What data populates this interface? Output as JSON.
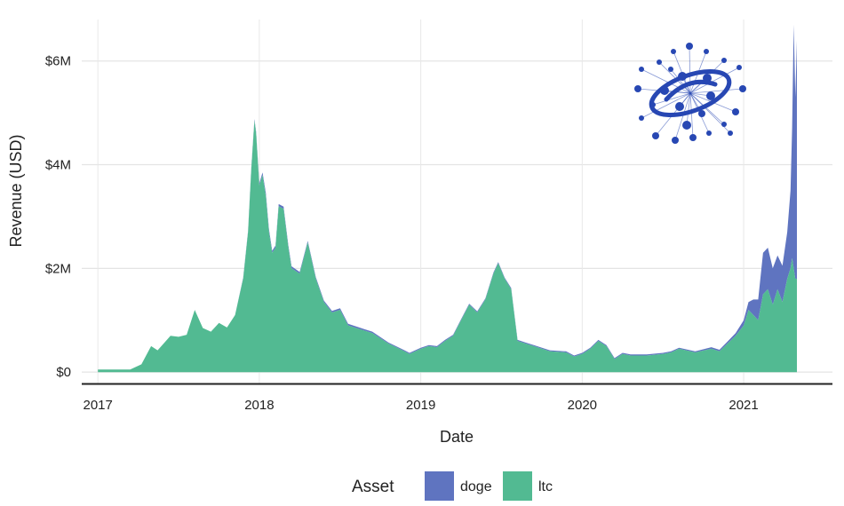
{
  "chart_data": {
    "type": "area",
    "stacked": true,
    "title": "",
    "xlabel": "Date",
    "ylabel": "Revenue (USD)",
    "xlim": [
      2016.9,
      2021.55
    ],
    "ylim": [
      -220000,
      6800000
    ],
    "x_ticks": [
      {
        "value": 2017,
        "label": "2017"
      },
      {
        "value": 2018,
        "label": "2018"
      },
      {
        "value": 2019,
        "label": "2019"
      },
      {
        "value": 2020,
        "label": "2020"
      },
      {
        "value": 2021,
        "label": "2021"
      }
    ],
    "y_ticks": [
      {
        "value": 0,
        "label": "$0"
      },
      {
        "value": 2000000,
        "label": "$2M"
      },
      {
        "value": 4000000,
        "label": "$4M"
      },
      {
        "value": 6000000,
        "label": "$6M"
      }
    ],
    "legend": {
      "title": "Asset",
      "position": "bottom"
    },
    "x": [
      2017.0,
      2017.1,
      2017.2,
      2017.27,
      2017.33,
      2017.37,
      2017.45,
      2017.5,
      2017.55,
      2017.6,
      2017.65,
      2017.7,
      2017.75,
      2017.8,
      2017.85,
      2017.9,
      2017.93,
      2017.95,
      2017.97,
      2017.98,
      2018.0,
      2018.02,
      2018.04,
      2018.06,
      2018.08,
      2018.1,
      2018.12,
      2018.15,
      2018.18,
      2018.2,
      2018.25,
      2018.3,
      2018.35,
      2018.4,
      2018.45,
      2018.5,
      2018.55,
      2018.6,
      2018.65,
      2018.7,
      2018.8,
      2018.9,
      2018.93,
      2019.0,
      2019.05,
      2019.1,
      2019.15,
      2019.2,
      2019.25,
      2019.3,
      2019.35,
      2019.4,
      2019.45,
      2019.48,
      2019.52,
      2019.56,
      2019.6,
      2019.65,
      2019.7,
      2019.8,
      2019.9,
      2019.95,
      2020.0,
      2020.05,
      2020.1,
      2020.15,
      2020.2,
      2020.25,
      2020.3,
      2020.4,
      2020.5,
      2020.55,
      2020.6,
      2020.7,
      2020.8,
      2020.85,
      2020.9,
      2020.95,
      2021.0,
      2021.03,
      2021.06,
      2021.09,
      2021.12,
      2021.15,
      2021.18,
      2021.21,
      2021.24,
      2021.27,
      2021.29,
      2021.3,
      2021.31,
      2021.32,
      2021.33
    ],
    "series": [
      {
        "name": "ltc",
        "color": "#52ba92",
        "values": [
          50000,
          50000,
          50000,
          150000,
          500000,
          420000,
          700000,
          680000,
          720000,
          1200000,
          850000,
          780000,
          950000,
          860000,
          1100000,
          1800000,
          2700000,
          3900000,
          4850000,
          4600000,
          3600000,
          3800000,
          3400000,
          2700000,
          2300000,
          2400000,
          3200000,
          3150000,
          2400000,
          2000000,
          1900000,
          2500000,
          1800000,
          1350000,
          1150000,
          1200000,
          900000,
          850000,
          800000,
          750000,
          550000,
          400000,
          350000,
          450000,
          500000,
          480000,
          600000,
          700000,
          1000000,
          1300000,
          1150000,
          1400000,
          1900000,
          2100000,
          1800000,
          1600000,
          600000,
          550000,
          500000,
          400000,
          380000,
          300000,
          350000,
          450000,
          600000,
          500000,
          250000,
          350000,
          320000,
          320000,
          350000,
          380000,
          450000,
          380000,
          450000,
          400000,
          550000,
          700000,
          900000,
          1200000,
          1100000,
          1000000,
          1500000,
          1600000,
          1300000,
          1600000,
          1350000,
          1800000,
          2000000,
          2200000,
          2000000,
          1800000,
          1800000
        ]
      },
      {
        "name": "doge",
        "color": "#5f74c0",
        "values": [
          0,
          0,
          0,
          0,
          0,
          0,
          0,
          0,
          0,
          0,
          0,
          0,
          0,
          0,
          0,
          20000,
          20000,
          30000,
          30000,
          30000,
          40000,
          50000,
          60000,
          50000,
          40000,
          40000,
          40000,
          40000,
          40000,
          40000,
          30000,
          30000,
          30000,
          30000,
          30000,
          30000,
          30000,
          30000,
          30000,
          30000,
          20000,
          20000,
          20000,
          20000,
          20000,
          20000,
          20000,
          20000,
          20000,
          20000,
          20000,
          20000,
          20000,
          20000,
          20000,
          20000,
          20000,
          20000,
          20000,
          20000,
          20000,
          20000,
          20000,
          20000,
          20000,
          20000,
          20000,
          20000,
          20000,
          20000,
          20000,
          20000,
          20000,
          20000,
          30000,
          30000,
          40000,
          50000,
          100000,
          150000,
          300000,
          400000,
          800000,
          800000,
          700000,
          650000,
          700000,
          900000,
          1500000,
          2500000,
          4700000,
          3500000,
          4600000
        ]
      }
    ]
  },
  "logo": {
    "name": "network-globe-logo",
    "color": "#2747b3"
  }
}
